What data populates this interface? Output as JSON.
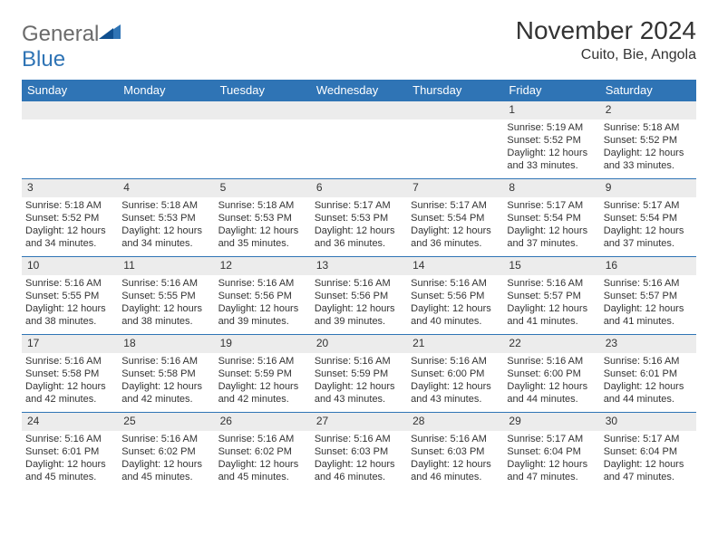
{
  "logo": {
    "word1": "General",
    "word2": "Blue"
  },
  "title": "November 2024",
  "location": "Cuito, Bie, Angola",
  "colors": {
    "header_bg": "#2f74b5",
    "header_text": "#ffffff",
    "daynum_bg": "#ececec",
    "border": "#2f74b5",
    "text": "#333333",
    "logo_gray": "#6b6b6b",
    "logo_blue": "#2f74b5",
    "page_bg": "#ffffff"
  },
  "day_headers": [
    "Sunday",
    "Monday",
    "Tuesday",
    "Wednesday",
    "Thursday",
    "Friday",
    "Saturday"
  ],
  "weeks": [
    [
      {
        "empty": true
      },
      {
        "empty": true
      },
      {
        "empty": true
      },
      {
        "empty": true
      },
      {
        "empty": true
      },
      {
        "day": "1",
        "sunrise": "Sunrise: 5:19 AM",
        "sunset": "Sunset: 5:52 PM",
        "daylight": "Daylight: 12 hours and 33 minutes."
      },
      {
        "day": "2",
        "sunrise": "Sunrise: 5:18 AM",
        "sunset": "Sunset: 5:52 PM",
        "daylight": "Daylight: 12 hours and 33 minutes."
      }
    ],
    [
      {
        "day": "3",
        "sunrise": "Sunrise: 5:18 AM",
        "sunset": "Sunset: 5:52 PM",
        "daylight": "Daylight: 12 hours and 34 minutes."
      },
      {
        "day": "4",
        "sunrise": "Sunrise: 5:18 AM",
        "sunset": "Sunset: 5:53 PM",
        "daylight": "Daylight: 12 hours and 34 minutes."
      },
      {
        "day": "5",
        "sunrise": "Sunrise: 5:18 AM",
        "sunset": "Sunset: 5:53 PM",
        "daylight": "Daylight: 12 hours and 35 minutes."
      },
      {
        "day": "6",
        "sunrise": "Sunrise: 5:17 AM",
        "sunset": "Sunset: 5:53 PM",
        "daylight": "Daylight: 12 hours and 36 minutes."
      },
      {
        "day": "7",
        "sunrise": "Sunrise: 5:17 AM",
        "sunset": "Sunset: 5:54 PM",
        "daylight": "Daylight: 12 hours and 36 minutes."
      },
      {
        "day": "8",
        "sunrise": "Sunrise: 5:17 AM",
        "sunset": "Sunset: 5:54 PM",
        "daylight": "Daylight: 12 hours and 37 minutes."
      },
      {
        "day": "9",
        "sunrise": "Sunrise: 5:17 AM",
        "sunset": "Sunset: 5:54 PM",
        "daylight": "Daylight: 12 hours and 37 minutes."
      }
    ],
    [
      {
        "day": "10",
        "sunrise": "Sunrise: 5:16 AM",
        "sunset": "Sunset: 5:55 PM",
        "daylight": "Daylight: 12 hours and 38 minutes."
      },
      {
        "day": "11",
        "sunrise": "Sunrise: 5:16 AM",
        "sunset": "Sunset: 5:55 PM",
        "daylight": "Daylight: 12 hours and 38 minutes."
      },
      {
        "day": "12",
        "sunrise": "Sunrise: 5:16 AM",
        "sunset": "Sunset: 5:56 PM",
        "daylight": "Daylight: 12 hours and 39 minutes."
      },
      {
        "day": "13",
        "sunrise": "Sunrise: 5:16 AM",
        "sunset": "Sunset: 5:56 PM",
        "daylight": "Daylight: 12 hours and 39 minutes."
      },
      {
        "day": "14",
        "sunrise": "Sunrise: 5:16 AM",
        "sunset": "Sunset: 5:56 PM",
        "daylight": "Daylight: 12 hours and 40 minutes."
      },
      {
        "day": "15",
        "sunrise": "Sunrise: 5:16 AM",
        "sunset": "Sunset: 5:57 PM",
        "daylight": "Daylight: 12 hours and 41 minutes."
      },
      {
        "day": "16",
        "sunrise": "Sunrise: 5:16 AM",
        "sunset": "Sunset: 5:57 PM",
        "daylight": "Daylight: 12 hours and 41 minutes."
      }
    ],
    [
      {
        "day": "17",
        "sunrise": "Sunrise: 5:16 AM",
        "sunset": "Sunset: 5:58 PM",
        "daylight": "Daylight: 12 hours and 42 minutes."
      },
      {
        "day": "18",
        "sunrise": "Sunrise: 5:16 AM",
        "sunset": "Sunset: 5:58 PM",
        "daylight": "Daylight: 12 hours and 42 minutes."
      },
      {
        "day": "19",
        "sunrise": "Sunrise: 5:16 AM",
        "sunset": "Sunset: 5:59 PM",
        "daylight": "Daylight: 12 hours and 42 minutes."
      },
      {
        "day": "20",
        "sunrise": "Sunrise: 5:16 AM",
        "sunset": "Sunset: 5:59 PM",
        "daylight": "Daylight: 12 hours and 43 minutes."
      },
      {
        "day": "21",
        "sunrise": "Sunrise: 5:16 AM",
        "sunset": "Sunset: 6:00 PM",
        "daylight": "Daylight: 12 hours and 43 minutes."
      },
      {
        "day": "22",
        "sunrise": "Sunrise: 5:16 AM",
        "sunset": "Sunset: 6:00 PM",
        "daylight": "Daylight: 12 hours and 44 minutes."
      },
      {
        "day": "23",
        "sunrise": "Sunrise: 5:16 AM",
        "sunset": "Sunset: 6:01 PM",
        "daylight": "Daylight: 12 hours and 44 minutes."
      }
    ],
    [
      {
        "day": "24",
        "sunrise": "Sunrise: 5:16 AM",
        "sunset": "Sunset: 6:01 PM",
        "daylight": "Daylight: 12 hours and 45 minutes."
      },
      {
        "day": "25",
        "sunrise": "Sunrise: 5:16 AM",
        "sunset": "Sunset: 6:02 PM",
        "daylight": "Daylight: 12 hours and 45 minutes."
      },
      {
        "day": "26",
        "sunrise": "Sunrise: 5:16 AM",
        "sunset": "Sunset: 6:02 PM",
        "daylight": "Daylight: 12 hours and 45 minutes."
      },
      {
        "day": "27",
        "sunrise": "Sunrise: 5:16 AM",
        "sunset": "Sunset: 6:03 PM",
        "daylight": "Daylight: 12 hours and 46 minutes."
      },
      {
        "day": "28",
        "sunrise": "Sunrise: 5:16 AM",
        "sunset": "Sunset: 6:03 PM",
        "daylight": "Daylight: 12 hours and 46 minutes."
      },
      {
        "day": "29",
        "sunrise": "Sunrise: 5:17 AM",
        "sunset": "Sunset: 6:04 PM",
        "daylight": "Daylight: 12 hours and 47 minutes."
      },
      {
        "day": "30",
        "sunrise": "Sunrise: 5:17 AM",
        "sunset": "Sunset: 6:04 PM",
        "daylight": "Daylight: 12 hours and 47 minutes."
      }
    ]
  ]
}
